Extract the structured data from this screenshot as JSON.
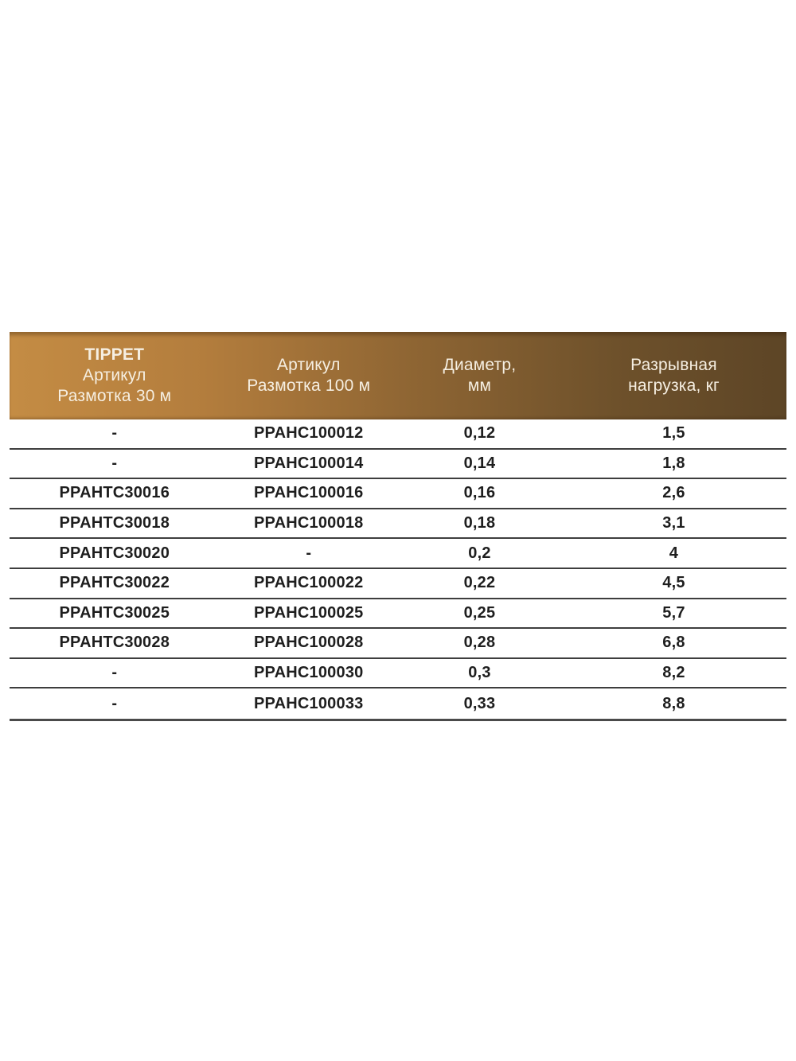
{
  "table": {
    "header": {
      "columns": [
        {
          "lines": [
            "TIPPET",
            "Артикул",
            "Размотка 30 м"
          ],
          "first_line_bold": true
        },
        {
          "lines": [
            "Артикул",
            "Размотка 100 м"
          ],
          "first_line_bold": false
        },
        {
          "lines": [
            "Диаметр,",
            "мм"
          ],
          "first_line_bold": false
        },
        {
          "lines": [
            "Разрывная",
            "нагрузка, кг"
          ],
          "first_line_bold": false
        }
      ]
    },
    "rows": [
      [
        "-",
        "PPAHC100012",
        "0,12",
        "1,5"
      ],
      [
        "-",
        "PPAHC100014",
        "0,14",
        "1,8"
      ],
      [
        "PPAHTC30016",
        "PPAHC100016",
        "0,16",
        "2,6"
      ],
      [
        "PPAHTC30018",
        "PPAHC100018",
        "0,18",
        "3,1"
      ],
      [
        "PPAHTC30020",
        "-",
        "0,2",
        "4"
      ],
      [
        "PPAHTC30022",
        "PPAHC100022",
        "0,22",
        "4,5"
      ],
      [
        "PPAHTC30025",
        "PPAHC100025",
        "0,25",
        "5,7"
      ],
      [
        "PPAHTC30028",
        "PPAHC100028",
        "0,28",
        "6,8"
      ],
      [
        "-",
        "PPAHC100030",
        "0,3",
        "8,2"
      ],
      [
        "-",
        "PPAHC100033",
        "0,33",
        "8,8"
      ]
    ],
    "colors": {
      "header_gradient_start": "#C48C44",
      "header_gradient_end": "#5D4526",
      "header_text": "#F6EFE2",
      "body_text": "#1E1E1E",
      "separator": "#3E3E3E",
      "bottom_border": "#4A4A4A",
      "background": "#FFFFFF"
    }
  }
}
